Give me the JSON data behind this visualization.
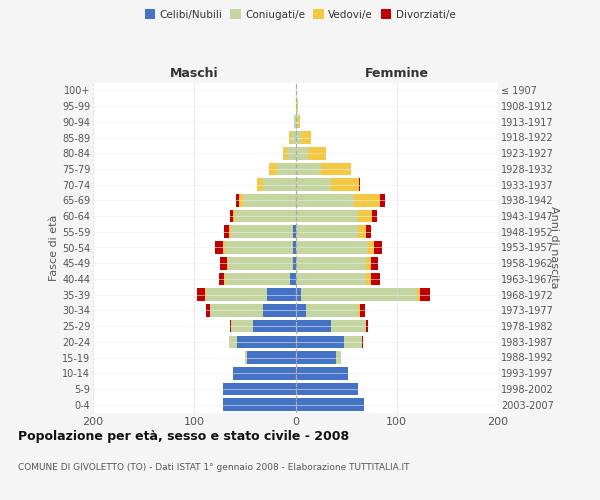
{
  "age_groups": [
    "0-4",
    "5-9",
    "10-14",
    "15-19",
    "20-24",
    "25-29",
    "30-34",
    "35-39",
    "40-44",
    "45-49",
    "50-54",
    "55-59",
    "60-64",
    "65-69",
    "70-74",
    "75-79",
    "80-84",
    "85-89",
    "90-94",
    "95-99",
    "100+"
  ],
  "birth_years": [
    "2003-2007",
    "1998-2002",
    "1993-1997",
    "1988-1992",
    "1983-1987",
    "1978-1982",
    "1973-1977",
    "1968-1972",
    "1963-1967",
    "1958-1962",
    "1953-1957",
    "1948-1952",
    "1943-1947",
    "1938-1942",
    "1933-1937",
    "1928-1932",
    "1923-1927",
    "1918-1922",
    "1913-1917",
    "1908-1912",
    "≤ 1907"
  ],
  "male": {
    "celibi": [
      72,
      72,
      62,
      48,
      58,
      42,
      32,
      28,
      5,
      2,
      2,
      2,
      0,
      0,
      0,
      0,
      0,
      0,
      0,
      0,
      0
    ],
    "coniugati": [
      0,
      0,
      0,
      2,
      8,
      22,
      52,
      60,
      65,
      65,
      68,
      62,
      60,
      52,
      32,
      18,
      8,
      4,
      1,
      0,
      0
    ],
    "vedovi": [
      0,
      0,
      0,
      0,
      0,
      0,
      0,
      1,
      1,
      1,
      2,
      2,
      2,
      4,
      6,
      8,
      4,
      2,
      0,
      0,
      0
    ],
    "divorziati": [
      0,
      0,
      0,
      0,
      0,
      1,
      4,
      8,
      5,
      7,
      8,
      5,
      3,
      3,
      0,
      0,
      0,
      0,
      0,
      0,
      0
    ]
  },
  "female": {
    "nubili": [
      68,
      62,
      52,
      40,
      48,
      35,
      10,
      5,
      0,
      0,
      0,
      0,
      0,
      0,
      0,
      0,
      0,
      0,
      0,
      0,
      0
    ],
    "coniugate": [
      0,
      0,
      0,
      5,
      18,
      35,
      52,
      115,
      70,
      70,
      72,
      62,
      62,
      58,
      35,
      25,
      12,
      5,
      2,
      1,
      0
    ],
    "vedove": [
      0,
      0,
      0,
      0,
      0,
      0,
      2,
      3,
      5,
      5,
      6,
      8,
      14,
      25,
      28,
      30,
      18,
      10,
      2,
      1,
      0
    ],
    "divorziate": [
      0,
      0,
      0,
      0,
      1,
      2,
      5,
      10,
      8,
      6,
      7,
      5,
      4,
      5,
      1,
      0,
      0,
      0,
      0,
      0,
      0
    ]
  },
  "colors": {
    "celibi_nubili": "#4472c4",
    "coniugati": "#c5d5a0",
    "vedovi": "#f5c842",
    "divorziati": "#c00000"
  },
  "legend_labels": [
    "Celibi/Nubili",
    "Coniugati/e",
    "Vedovi/e",
    "Divorziati/e"
  ],
  "title": "Popolazione per età, sesso e stato civile - 2008",
  "subtitle": "COMUNE DI GIVOLETTO (TO) - Dati ISTAT 1° gennaio 2008 - Elaborazione TUTTITALIA.IT",
  "label_maschi": "Maschi",
  "label_femmine": "Femmine",
  "ylabel_left": "Fasce di età",
  "ylabel_right": "Anni di nascita",
  "xlim": 200,
  "bg_color": "#f5f5f5",
  "plot_bg": "#ffffff",
  "grid_color": "#cccccc"
}
